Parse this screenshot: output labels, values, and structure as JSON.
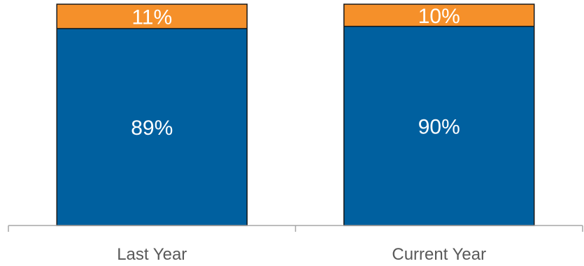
{
  "chart_data": {
    "type": "bar",
    "stacked": true,
    "categories": [
      "Last Year",
      "Current Year"
    ],
    "series": [
      {
        "values": [
          89,
          90
        ],
        "labels": [
          "89%",
          "90%"
        ],
        "color": "#00609f"
      },
      {
        "values": [
          11,
          10
        ],
        "labels": [
          "11%",
          "10%"
        ],
        "color": "#f5902a"
      }
    ],
    "ylim": [
      0,
      100
    ],
    "grid": false,
    "legend": "none",
    "bar_edge_color": "#1a1a1a",
    "axis_color": "#a6a6a6"
  }
}
